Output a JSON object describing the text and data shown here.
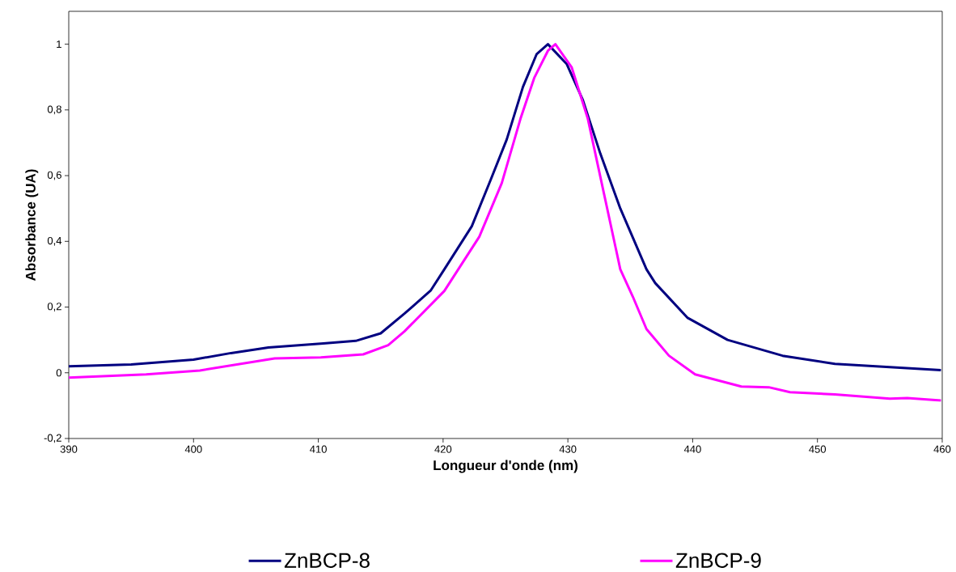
{
  "chart_data": {
    "type": "line",
    "xlabel": "Longueur d'onde (nm)",
    "ylabel": "Absorbance (UA)",
    "xlim": [
      390,
      460
    ],
    "xticks": [
      390,
      400,
      410,
      420,
      430,
      440,
      450,
      460
    ],
    "ylim": [
      -0.2,
      1.1
    ],
    "yticks": [
      {
        "value": -0.2,
        "label": "-0,2"
      },
      0,
      {
        "value": 0.2,
        "label": "0,2"
      },
      {
        "value": 0.4,
        "label": "0,4"
      },
      {
        "value": 0.6,
        "label": "0,6"
      },
      {
        "value": 0.8,
        "label": "0,8"
      },
      1
    ],
    "grid": false,
    "legend": "bottom",
    "marker": "none",
    "line_style": "solid",
    "series": [
      {
        "name": "ZnBCP-8",
        "color": "#000080",
        "x": [
          390,
          395,
          400,
          403,
          406,
          410.4,
          413,
          415,
          416.9,
          419,
          420.1,
          422.3,
          423.8,
          425.1,
          426.4,
          427.5,
          428.4,
          429.9,
          431.2,
          432.6,
          434.2,
          436.3,
          437,
          439.6,
          442.8,
          447.2,
          451.4,
          459.9
        ],
        "values": [
          0.02,
          0.025,
          0.04,
          0.06,
          0.077,
          0.089,
          0.097,
          0.12,
          0.18,
          0.25,
          0.315,
          0.446,
          0.586,
          0.71,
          0.87,
          0.97,
          1.0,
          0.94,
          0.83,
          0.667,
          0.5,
          0.315,
          0.273,
          0.167,
          0.1,
          0.052,
          0.027,
          0.008
        ]
      },
      {
        "name": "ZnBCP-9",
        "color": "#ff00ff",
        "x": [
          390,
          396.2,
          400.5,
          406.5,
          410.2,
          413.6,
          415.6,
          416.9,
          420.1,
          422.9,
          424.7,
          426.2,
          427.3,
          428.4,
          429,
          430.3,
          431.6,
          432.9,
          434.2,
          435.2,
          436.3,
          438.1,
          440.2,
          443.9,
          446.1,
          447.8,
          451.4,
          455.8,
          457.2,
          459.9
        ],
        "values": [
          -0.015,
          -0.005,
          0.007,
          0.044,
          0.047,
          0.056,
          0.084,
          0.126,
          0.249,
          0.414,
          0.577,
          0.773,
          0.897,
          0.98,
          1.0,
          0.93,
          0.773,
          0.544,
          0.315,
          0.232,
          0.133,
          0.052,
          -0.005,
          -0.042,
          -0.044,
          -0.059,
          -0.066,
          -0.079,
          -0.077,
          -0.084
        ]
      }
    ]
  }
}
